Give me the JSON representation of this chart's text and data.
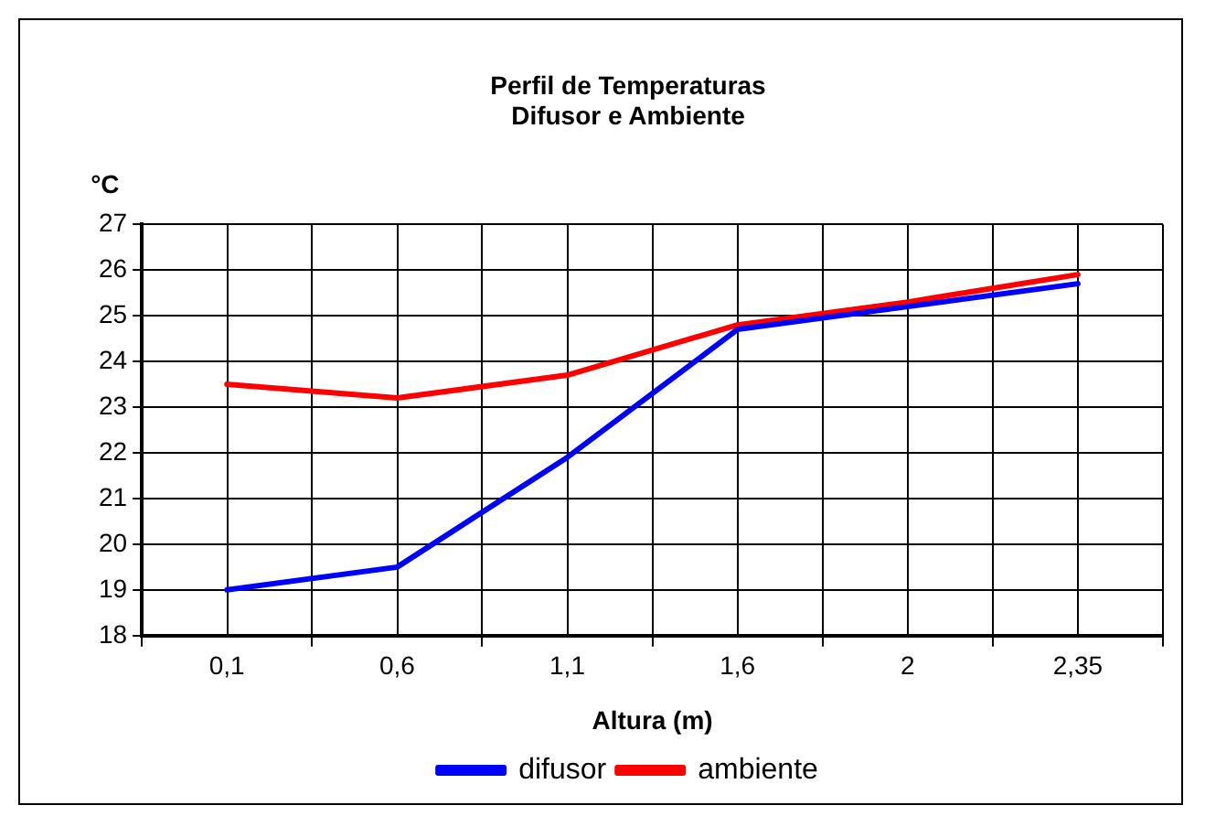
{
  "chart_data": {
    "type": "line",
    "title": [
      "Perfil de Temperaturas",
      "Difusor e Ambiente"
    ],
    "ylabel": "°C",
    "xlabel": "Altura (m)",
    "categories": [
      "0,1",
      "0,6",
      "1,1",
      "1,6",
      "2",
      "2,35"
    ],
    "series": [
      {
        "name": "difusor",
        "color": "#0000ff",
        "values": [
          19.0,
          19.5,
          21.9,
          24.7,
          25.2,
          25.7
        ]
      },
      {
        "name": "ambiente",
        "color": "#ff0000",
        "values": [
          23.5,
          23.2,
          23.7,
          24.8,
          25.3,
          25.9
        ]
      }
    ],
    "ylim": [
      18,
      27
    ],
    "yticks": [
      18,
      19,
      20,
      21,
      22,
      23,
      24,
      25,
      26,
      27
    ],
    "grid": true,
    "legend": "bottom",
    "marker": "none",
    "line_style": "solid"
  }
}
